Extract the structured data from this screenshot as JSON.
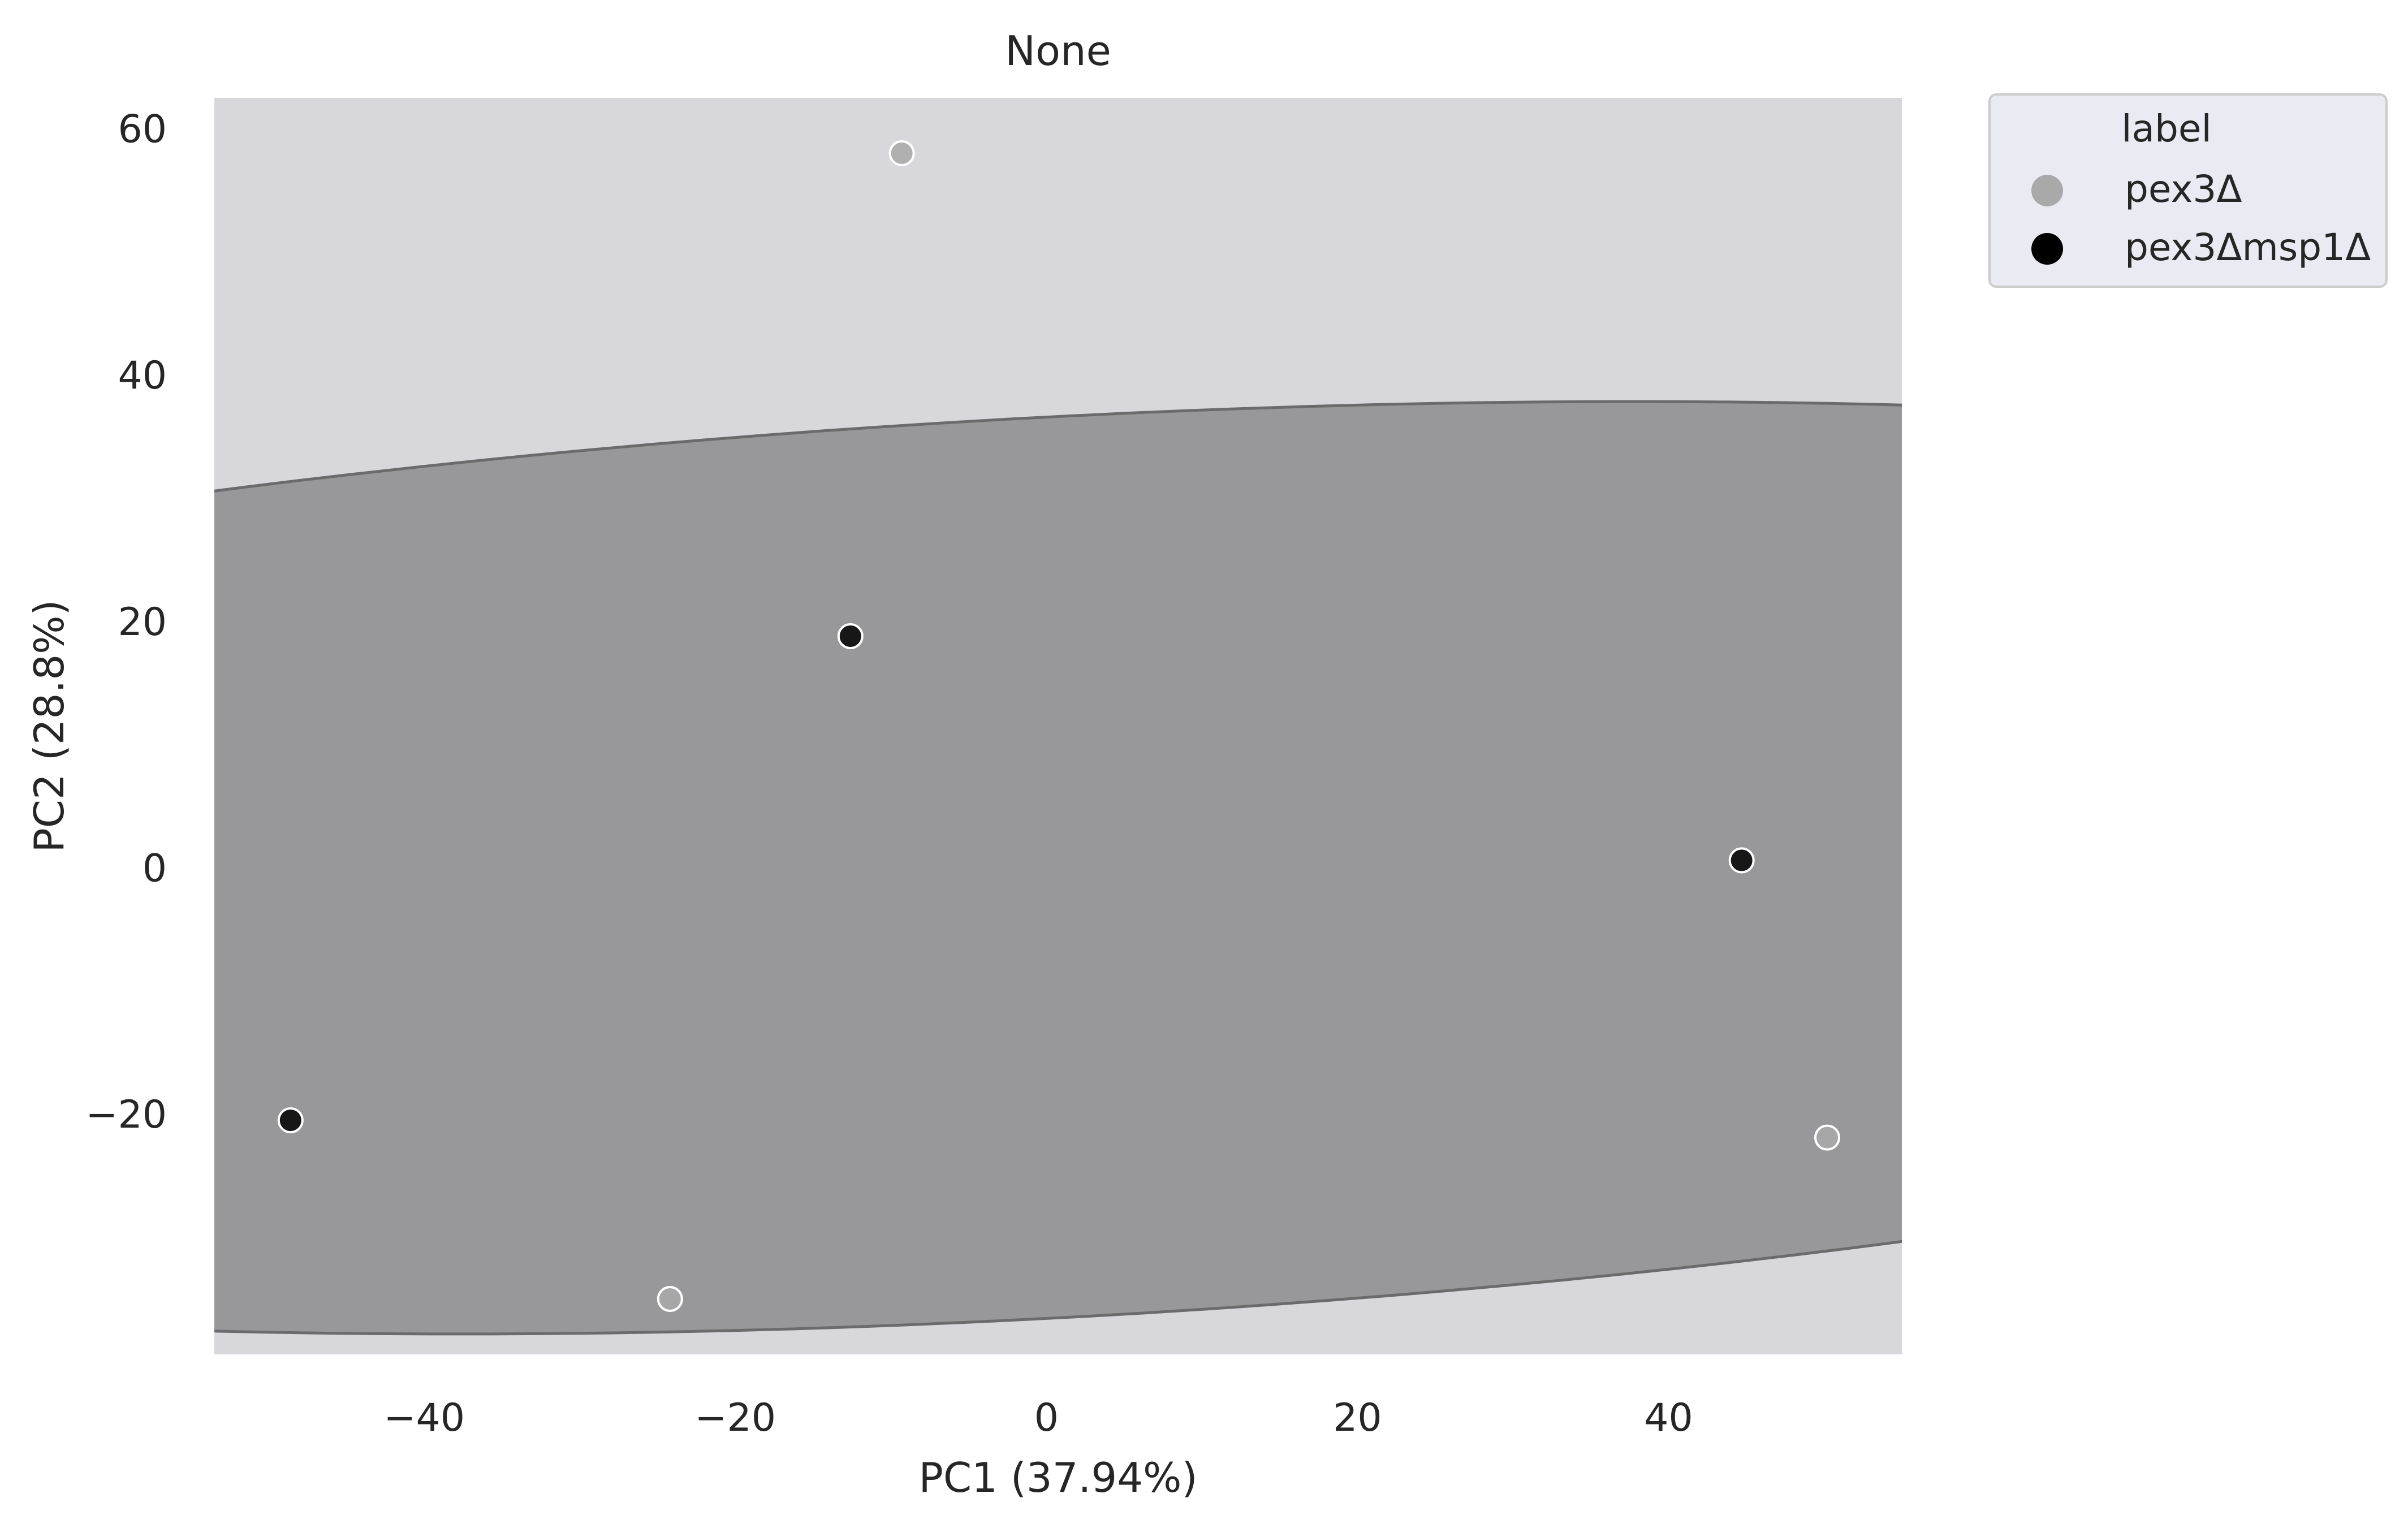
{
  "colors": {
    "page_background": "#ffffff",
    "plot_background": "#d8d7dc",
    "ellipse_fill": "#8d8d8f",
    "ellipse_edge": "#6b6b6d",
    "marker_edge": "#ffffff",
    "legend_background": "#eaeaf2",
    "legend_border": "#cccccc"
  },
  "chart_data": {
    "type": "scatter",
    "title": "None",
    "xlabel": "PC1 (37.94%)",
    "ylabel": "PC2 (28.8%)",
    "xlim": [
      -53.5,
      55
    ],
    "ylim": [
      -39.5,
      62.5
    ],
    "xticks": [
      -40,
      -20,
      0,
      20,
      40
    ],
    "xtick_labels": [
      "−40",
      "−20",
      "0",
      "20",
      "40"
    ],
    "yticks": [
      -20,
      0,
      20,
      40,
      60
    ],
    "ytick_labels": [
      "−20",
      "0",
      "20",
      "40",
      "60"
    ],
    "grid": false,
    "legend": {
      "title": "label",
      "placement": "outside-top-right"
    },
    "series": [
      {
        "name": "pex3Δ",
        "color": "#a9a9a9",
        "points": [
          {
            "x": -9.3,
            "y": 58.0
          },
          {
            "x": 50.2,
            "y": -21.9
          },
          {
            "x": -24.2,
            "y": -35.0
          }
        ]
      },
      {
        "name": "pex3Δmsp1Δ",
        "color": "#000000",
        "points": [
          {
            "x": -12.6,
            "y": 18.8
          },
          {
            "x": 44.7,
            "y": 0.6
          },
          {
            "x": -48.6,
            "y": -20.5
          }
        ]
      }
    ],
    "ellipse": {
      "center": [
        0,
        0
      ],
      "semi_major": 148,
      "semi_minor": 36.5,
      "angle_deg": 4.0
    }
  }
}
